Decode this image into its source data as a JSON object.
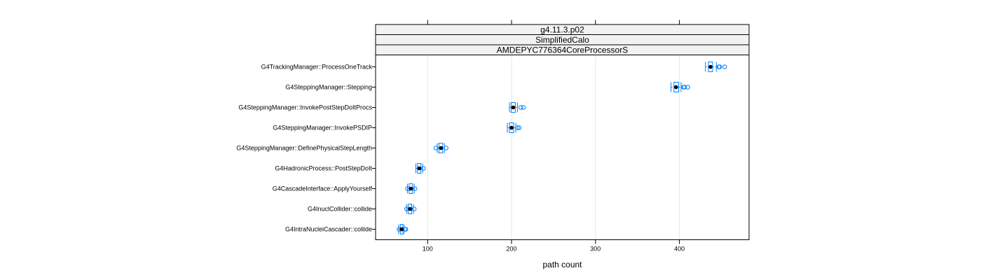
{
  "chart_data": {
    "type": "boxplot",
    "strips": [
      "g4.11.3.p02",
      "SimplifiedCalo",
      "AMDEPYC776364CoreProcessorS"
    ],
    "xlabel": "path count",
    "xlim": [
      38,
      483
    ],
    "xticks": [
      100,
      200,
      300,
      400
    ],
    "grid": "vertical",
    "colors": {
      "box": "#0080ff",
      "outlier": "#0080ff",
      "median": "#000000",
      "strip_bg": "#f2f2f2",
      "grid": "#e6e6e6",
      "frame": "#000000"
    },
    "categories": [
      "G4TrackingManager::ProcessOneTrack",
      "G4SteppingManager::Stepping",
      "G4SteppingManager::InvokePostStepDoItProcs",
      "G4SteppingManager::InvokePSDIP",
      "G4SteppingManager::DefinePhysicalStepLength",
      "G4HadronicProcess::PostStepDoIt",
      "G4CascadeInterface::ApplyYourself",
      "G4InuclCollider::collide",
      "G4IntraNucleiCascader::collide"
    ],
    "series": [
      {
        "median": 437,
        "q1": 434.5,
        "q3": 439.5,
        "whisker_low": 431,
        "whisker_high": 444,
        "outliers": [
          447,
          448,
          454
        ]
      },
      {
        "median": 396,
        "q1": 393.5,
        "q3": 399,
        "whisker_low": 390,
        "whisker_high": 402,
        "outliers": [
          405,
          406,
          410
        ]
      },
      {
        "median": 202,
        "q1": 199.5,
        "q3": 204.5,
        "whisker_low": 197.5,
        "whisker_high": 207,
        "outliers": [
          211,
          214
        ]
      },
      {
        "median": 200,
        "q1": 197.5,
        "q3": 202.5,
        "whisker_low": 195,
        "whisker_high": 205,
        "outliers": [
          207,
          209
        ]
      },
      {
        "median": 116,
        "q1": 113.5,
        "q3": 118,
        "whisker_low": 111.5,
        "whisker_high": 120,
        "outliers": [
          110,
          122
        ]
      },
      {
        "median": 90,
        "q1": 88,
        "q3": 92,
        "whisker_low": 86,
        "whisker_high": 94,
        "outliers": [
          95
        ]
      },
      {
        "median": 80,
        "q1": 78,
        "q3": 82,
        "whisker_low": 76,
        "whisker_high": 84,
        "outliers": [
          76,
          85
        ]
      },
      {
        "median": 79,
        "q1": 77,
        "q3": 81,
        "whisker_low": 75,
        "whisker_high": 83,
        "outliers": [
          75,
          84
        ]
      },
      {
        "median": 69,
        "q1": 67.5,
        "q3": 70.5,
        "whisker_low": 65.5,
        "whisker_high": 72,
        "outliers": [
          66,
          73,
          74
        ]
      }
    ]
  }
}
